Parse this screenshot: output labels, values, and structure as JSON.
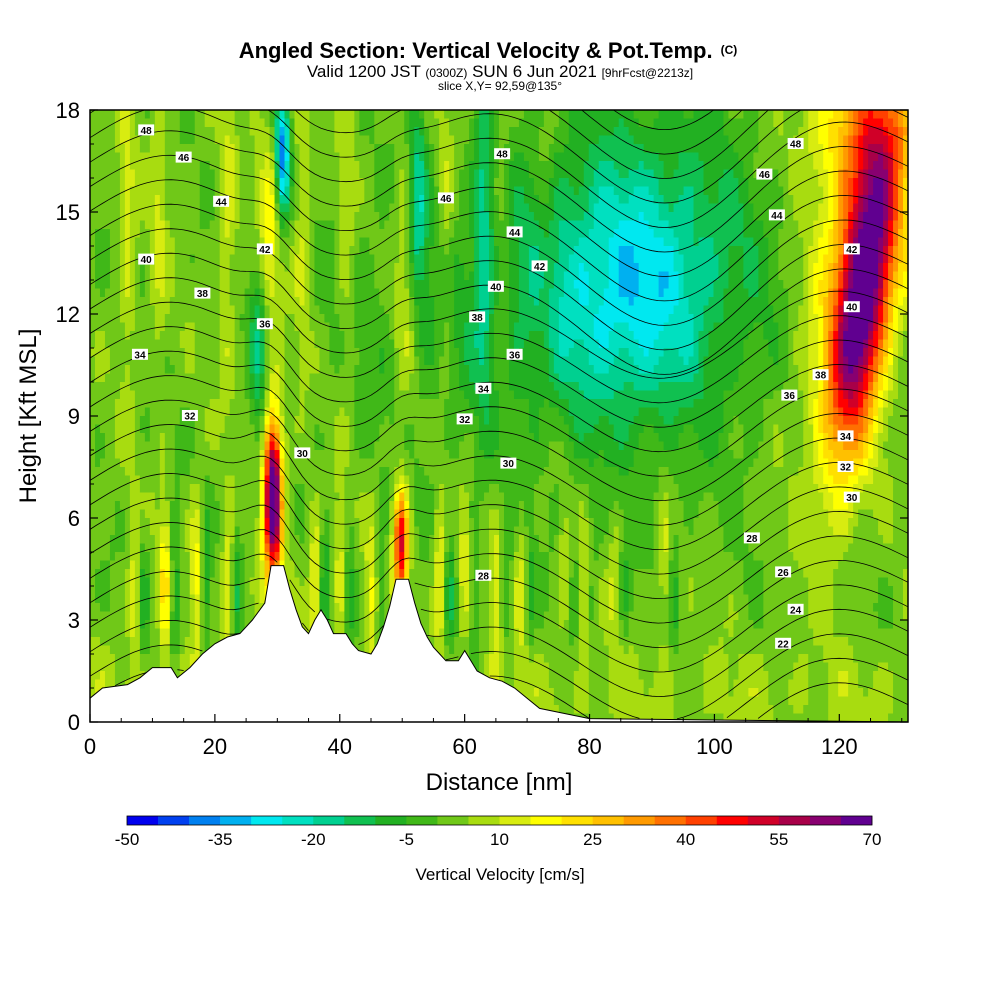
{
  "header": {
    "title": "Angled Section: Vertical Velocity & Pot.Temp.",
    "title_mark": "(C)",
    "valid_prefix": "Valid 1200 JST",
    "valid_utc": "(0300Z)",
    "valid_date": "SUN 6 Jun 2021",
    "forecast": "[9hrFcst@2213z]",
    "slice": "slice X,Y= 92,59@135°"
  },
  "chart_data": {
    "type": "heatmap",
    "xlabel": "Distance [nm]",
    "ylabel": "Height [Kft MSL]",
    "xlim": [
      0,
      131
    ],
    "ylim": [
      0,
      18
    ],
    "x_ticks": [
      0,
      20,
      40,
      60,
      80,
      100,
      120
    ],
    "y_ticks": [
      0,
      3,
      6,
      9,
      12,
      15,
      18
    ],
    "colorbar": {
      "label": "Vertical Velocity [cm/s]",
      "tick_values": [
        -50,
        -35,
        -20,
        -5,
        10,
        25,
        40,
        55,
        70
      ],
      "levels": [
        -50,
        -45,
        -40,
        -35,
        -30,
        -25,
        -20,
        -15,
        -10,
        -5,
        0,
        5,
        10,
        15,
        20,
        25,
        30,
        35,
        40,
        45,
        50,
        55,
        60,
        65,
        70
      ],
      "colors": [
        "#0000ee",
        "#0040f0",
        "#0080f0",
        "#00b0f0",
        "#00e8f0",
        "#00e0c0",
        "#00d090",
        "#10c050",
        "#22b022",
        "#40b818",
        "#70c818",
        "#a8dc10",
        "#d8ec10",
        "#ffff00",
        "#ffe000",
        "#ffc000",
        "#ff9a00",
        "#ff7000",
        "#ff4000",
        "#ff0000",
        "#d00028",
        "#a80048",
        "#880070",
        "#600090"
      ]
    },
    "theta_contour_labels": [
      {
        "value": 48,
        "x": 9,
        "y": 17.4
      },
      {
        "value": 46,
        "x": 15,
        "y": 16.6
      },
      {
        "value": 44,
        "x": 21,
        "y": 15.3
      },
      {
        "value": 42,
        "x": 28,
        "y": 13.9
      },
      {
        "value": 40,
        "x": 9,
        "y": 13.6
      },
      {
        "value": 38,
        "x": 18,
        "y": 12.6
      },
      {
        "value": 36,
        "x": 28,
        "y": 11.7
      },
      {
        "value": 34,
        "x": 8,
        "y": 10.8
      },
      {
        "value": 32,
        "x": 16,
        "y": 9.0
      },
      {
        "value": 30,
        "x": 34,
        "y": 7.9
      },
      {
        "value": 48,
        "x": 66,
        "y": 16.7
      },
      {
        "value": 46,
        "x": 57,
        "y": 15.4
      },
      {
        "value": 44,
        "x": 68,
        "y": 14.4
      },
      {
        "value": 42,
        "x": 72,
        "y": 13.4
      },
      {
        "value": 40,
        "x": 65,
        "y": 12.8
      },
      {
        "value": 38,
        "x": 62,
        "y": 11.9
      },
      {
        "value": 36,
        "x": 68,
        "y": 10.8
      },
      {
        "value": 34,
        "x": 63,
        "y": 9.8
      },
      {
        "value": 32,
        "x": 60,
        "y": 8.9
      },
      {
        "value": 30,
        "x": 67,
        "y": 7.6
      },
      {
        "value": 28,
        "x": 63,
        "y": 4.3
      },
      {
        "value": 48,
        "x": 113,
        "y": 17.0
      },
      {
        "value": 46,
        "x": 108,
        "y": 16.1
      },
      {
        "value": 44,
        "x": 110,
        "y": 14.9
      },
      {
        "value": 42,
        "x": 122,
        "y": 13.9
      },
      {
        "value": 40,
        "x": 122,
        "y": 12.2
      },
      {
        "value": 38,
        "x": 117,
        "y": 10.2
      },
      {
        "value": 36,
        "x": 112,
        "y": 9.6
      },
      {
        "value": 34,
        "x": 121,
        "y": 8.4
      },
      {
        "value": 32,
        "x": 121,
        "y": 7.5
      },
      {
        "value": 30,
        "x": 122,
        "y": 6.6
      },
      {
        "value": 28,
        "x": 106,
        "y": 5.4
      },
      {
        "value": 26,
        "x": 111,
        "y": 4.4
      },
      {
        "value": 24,
        "x": 113,
        "y": 3.3
      },
      {
        "value": 22,
        "x": 111,
        "y": 2.3
      }
    ],
    "terrain_profile": [
      [
        0,
        0.7
      ],
      [
        2,
        1.0
      ],
      [
        6,
        1.1
      ],
      [
        8,
        1.3
      ],
      [
        10,
        1.6
      ],
      [
        13,
        1.6
      ],
      [
        14,
        1.3
      ],
      [
        16,
        1.6
      ],
      [
        18,
        2.0
      ],
      [
        20,
        2.3
      ],
      [
        22,
        2.5
      ],
      [
        24,
        2.6
      ],
      [
        26,
        3.0
      ],
      [
        28,
        3.5
      ],
      [
        29,
        4.6
      ],
      [
        31,
        4.6
      ],
      [
        32,
        3.9
      ],
      [
        33,
        3.3
      ],
      [
        34,
        2.8
      ],
      [
        35,
        2.6
      ],
      [
        36,
        3.0
      ],
      [
        37,
        3.3
      ],
      [
        38,
        3.0
      ],
      [
        39,
        2.6
      ],
      [
        41,
        2.6
      ],
      [
        42,
        2.3
      ],
      [
        43,
        2.1
      ],
      [
        45,
        2.0
      ],
      [
        46,
        2.3
      ],
      [
        47,
        2.8
      ],
      [
        48,
        3.4
      ],
      [
        49,
        4.2
      ],
      [
        51,
        4.2
      ],
      [
        52,
        3.5
      ],
      [
        53,
        2.9
      ],
      [
        54,
        2.5
      ],
      [
        55,
        2.2
      ],
      [
        56,
        2.0
      ],
      [
        57,
        1.8
      ],
      [
        59,
        1.8
      ],
      [
        60,
        2.1
      ],
      [
        61,
        1.8
      ],
      [
        62,
        1.5
      ],
      [
        64,
        1.3
      ],
      [
        66,
        1.2
      ],
      [
        68,
        1.0
      ],
      [
        70,
        0.7
      ],
      [
        72,
        0.4
      ],
      [
        80,
        0.1
      ],
      [
        131,
        0
      ]
    ]
  }
}
